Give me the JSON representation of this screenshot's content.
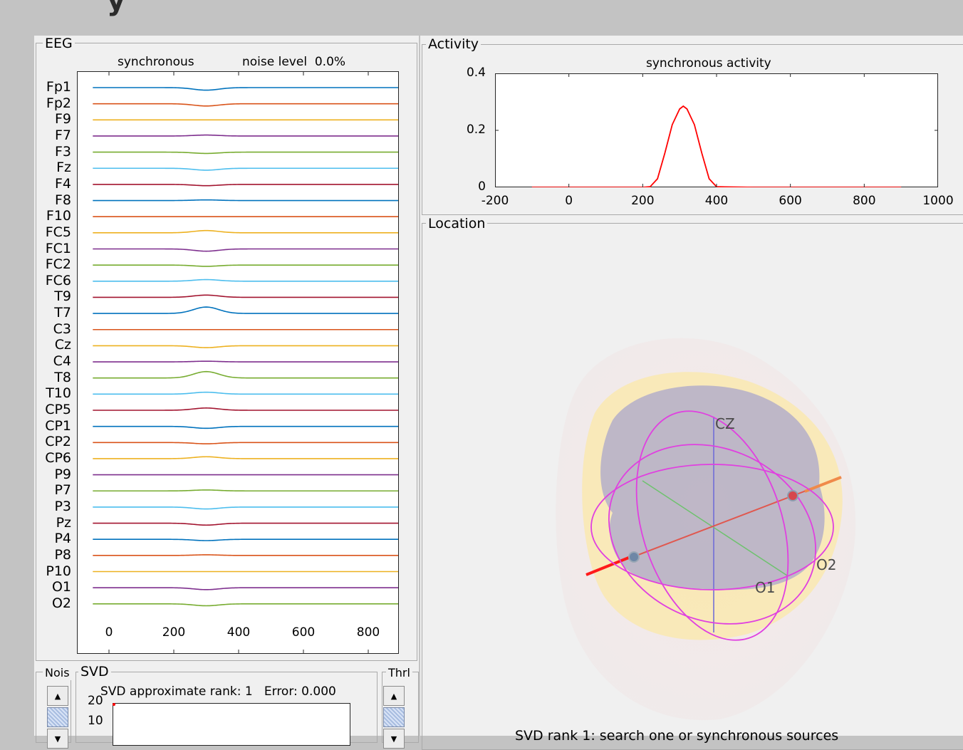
{
  "eeg_panel": {
    "title": "EEG",
    "subtitle_left": "synchronous",
    "subtitle_right": "noise level  0.0%",
    "channels": [
      "Fp1",
      "Fp2",
      "F9",
      "F7",
      "F3",
      "Fz",
      "F4",
      "F8",
      "F10",
      "FC5",
      "FC1",
      "FC2",
      "FC6",
      "T9",
      "T7",
      "C3",
      "Cz",
      "C4",
      "T8",
      "T10",
      "CP5",
      "CP1",
      "CP2",
      "CP6",
      "P9",
      "P7",
      "P3",
      "Pz",
      "P4",
      "P8",
      "P10",
      "O1",
      "O2"
    ],
    "amplitudes": [
      -0.4,
      -0.35,
      0,
      0.15,
      -0.2,
      -0.3,
      -0.2,
      0.1,
      0,
      0.35,
      -0.35,
      -0.2,
      0.25,
      0.35,
      1.0,
      0,
      -0.3,
      0.1,
      1.0,
      0.3,
      0.35,
      -0.3,
      -0.2,
      0.3,
      0,
      0.15,
      -0.3,
      -0.3,
      -0.2,
      0.1,
      0,
      -0.3,
      -0.3
    ],
    "colors": [
      "#0072bd",
      "#d95319",
      "#edb120",
      "#7e2f8e",
      "#77ac30",
      "#4dbeee",
      "#a2142f"
    ],
    "x_ticks": [
      "0",
      "200",
      "400",
      "600",
      "800"
    ]
  },
  "activity_panel": {
    "title": "Activity",
    "plot_title": "synchronous activity",
    "line_color": "#ff0000"
  },
  "chart_data": {
    "type": "line",
    "title": "synchronous activity",
    "xlabel": "",
    "ylabel": "",
    "xlim": [
      -200,
      1000
    ],
    "ylim": [
      0,
      0.4
    ],
    "x_ticks": [
      "-200",
      "0",
      "200",
      "400",
      "600",
      "800",
      "1000"
    ],
    "y_ticks": [
      "0",
      "0.2",
      "0.4"
    ],
    "series": [
      {
        "x": [
          -100,
          0,
          100,
          200,
          220,
          240,
          260,
          280,
          300,
          310,
          320,
          340,
          360,
          380,
          400,
          500,
          600,
          700,
          800,
          900
        ],
        "values": [
          0,
          0,
          0,
          0,
          0.002,
          0.03,
          0.12,
          0.22,
          0.275,
          0.285,
          0.275,
          0.22,
          0.12,
          0.03,
          0.002,
          0,
          0,
          0,
          0,
          0
        ]
      }
    ]
  },
  "location_panel": {
    "title": "Location",
    "electrode_labels": [
      "CZ",
      "O2",
      "O1"
    ],
    "status_text": "SVD rank 1: search one or synchronous sources"
  },
  "svd_panel": {
    "title": "SVD",
    "noise_label": "Nois",
    "threshold_label": "Thrl",
    "plot_title": "SVD approximate rank: 1   Error: 0.000",
    "y_ticks": [
      "20",
      "10"
    ]
  }
}
